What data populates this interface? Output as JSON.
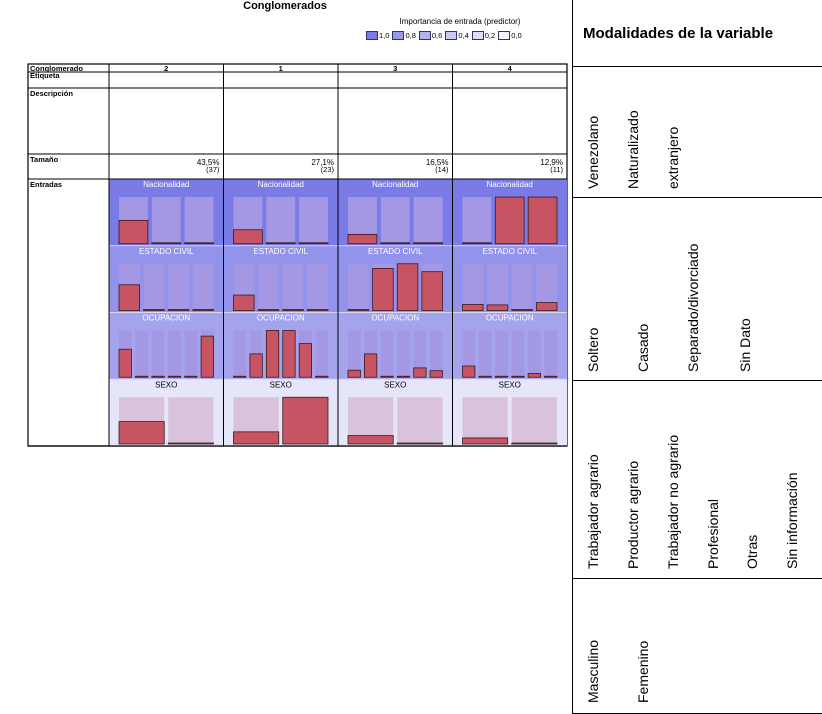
{
  "chart_data": {
    "type": "table",
    "title": "Conglomerados",
    "legend": {
      "title": "Importancia de entrada (predictor)",
      "items": [
        {
          "label": "1,0",
          "color": "#7b7be8"
        },
        {
          "label": "0,8",
          "color": "#9898ec"
        },
        {
          "label": "0,6",
          "color": "#b2b2f0"
        },
        {
          "label": "0,4",
          "color": "#c8c8f4"
        },
        {
          "label": "0,2",
          "color": "#dedef8"
        },
        {
          "label": "0,0",
          "color": "#f4f4fc"
        }
      ]
    },
    "row_headers": [
      "Conglomerado",
      "Etiqueta",
      "Descripción",
      "Tamaño",
      "Entradas"
    ],
    "clusters": [
      {
        "id": "2",
        "size_pct": "43,5%",
        "size_n": "(37)"
      },
      {
        "id": "1",
        "size_pct": "27,1%",
        "size_n": "(23)"
      },
      {
        "id": "3",
        "size_pct": "16,5%",
        "size_n": "(14)"
      },
      {
        "id": "4",
        "size_pct": "12,9%",
        "size_n": "(11)"
      }
    ],
    "inputs": [
      {
        "name": "Nacionalidad",
        "importance": 1.0,
        "bg_color": "#7b7be8",
        "categories": [
          "Venezolano",
          "Naturalizado",
          "extranjero"
        ],
        "values": [
          [
            0.5,
            0.0,
            0.0
          ],
          [
            0.3,
            0.0,
            0.0
          ],
          [
            0.2,
            0.0,
            0.0
          ],
          [
            0.0,
            1.0,
            1.0
          ]
        ]
      },
      {
        "name": "ESTADO CIVIL",
        "importance": 0.85,
        "bg_color": "#9393ec",
        "categories": [
          "Soltero",
          "Casado",
          "Separado/divorciado",
          "Sin Dato"
        ],
        "values": [
          [
            0.55,
            0.0,
            0.0,
            0.0
          ],
          [
            0.33,
            0.0,
            0.0,
            0.0
          ],
          [
            0.0,
            0.9,
            1.0,
            0.83
          ],
          [
            0.13,
            0.12,
            0.0,
            0.17
          ]
        ]
      },
      {
        "name": "OCUPACION",
        "importance": 0.75,
        "bg_color": "#a3a3ee",
        "categories": [
          "Trabajador agrario",
          "Productor agrario",
          "Trabajador no agrario",
          "Profesional",
          "Otras",
          "Sin información"
        ],
        "values": [
          [
            0.6,
            0.0,
            0.0,
            0.0,
            0.0,
            0.88
          ],
          [
            0.0,
            0.5,
            1.0,
            1.0,
            0.72,
            0.0
          ],
          [
            0.15,
            0.5,
            0.0,
            0.0,
            0.2,
            0.14
          ],
          [
            0.24,
            0.0,
            0.0,
            0.0,
            0.08,
            0.0
          ]
        ]
      },
      {
        "name": "SEXO",
        "importance": 0.1,
        "bg_color": "#e6e6fa",
        "categories": [
          "Masculino",
          "Femenino"
        ],
        "values": [
          [
            0.48,
            0.0
          ],
          [
            0.26,
            1.0
          ],
          [
            0.18,
            0.0
          ],
          [
            0.13,
            0.0
          ]
        ]
      }
    ]
  },
  "right_panel": {
    "header": "Modalidades de la variable",
    "groups": [
      [
        "Venezolano",
        "Naturalizado",
        "extranjero"
      ],
      [
        "Soltero",
        "Casado",
        "Separado/divorciado",
        "Sin Dato"
      ],
      [
        "Trabajador agrario",
        "Productor agrario",
        "Trabajador no agrario",
        "Profesional",
        "Otras",
        "Sin información"
      ],
      [
        "Masculino",
        "Femenino"
      ]
    ]
  }
}
